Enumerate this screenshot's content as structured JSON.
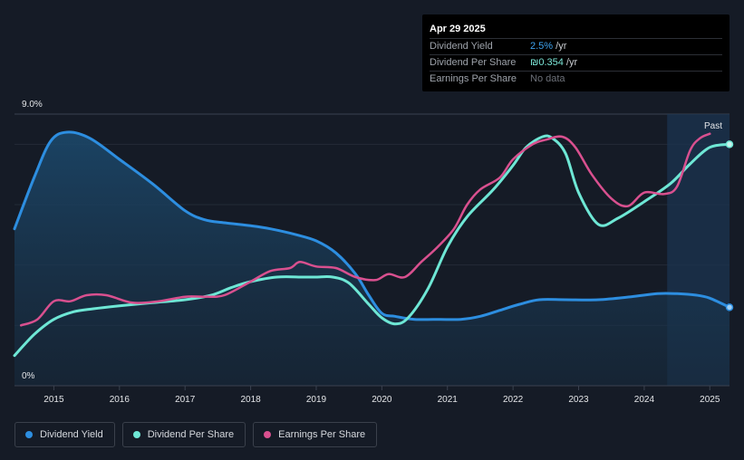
{
  "tooltip": {
    "date": "Apr 29 2025",
    "rows": [
      {
        "label": "Dividend Yield",
        "value": "2.5%",
        "unit": " /yr"
      },
      {
        "label": "Dividend Per Share",
        "value": "₪0.354",
        "unit": " /yr"
      },
      {
        "label": "Earnings Per Share",
        "value": "No data",
        "unit": ""
      }
    ]
  },
  "legend": [
    {
      "label": "Dividend Yield",
      "color": "#2d8ee0"
    },
    {
      "label": "Dividend Per Share",
      "color": "#6ee7d5"
    },
    {
      "label": "Earnings Per Share",
      "color": "#d9508f"
    }
  ],
  "chart_data": {
    "type": "line",
    "ylabel_top": "9.0%",
    "ylabel_bottom": "0%",
    "ylim": [
      0,
      9.0
    ],
    "xlim": [
      2014.4,
      2025.3
    ],
    "x_ticks": [
      "2015",
      "2016",
      "2017",
      "2018",
      "2019",
      "2020",
      "2021",
      "2022",
      "2023",
      "2024",
      "2025"
    ],
    "past_label": "Past",
    "past_start": 2024.35,
    "grid": true,
    "legend_position": "bottom-left",
    "colors": {
      "dividend_yield": "#2d8ee0",
      "dividend_per_share": "#6ee7d5",
      "earnings_per_share": "#d9508f"
    },
    "series": [
      {
        "name": "Dividend Yield",
        "x": [
          2014.4,
          2014.7,
          2014.95,
          2015.2,
          2015.55,
          2016.0,
          2016.5,
          2017.0,
          2017.3,
          2017.6,
          2018.0,
          2018.3,
          2018.7,
          2019.0,
          2019.3,
          2019.6,
          2019.8,
          2020.0,
          2020.2,
          2020.5,
          2020.9,
          2021.2,
          2021.5,
          2021.8,
          2022.1,
          2022.4,
          2022.8,
          2023.3,
          2023.8,
          2024.2,
          2024.5,
          2024.8,
          2025.0,
          2025.3
        ],
        "values": [
          5.2,
          6.9,
          8.1,
          8.4,
          8.2,
          7.5,
          6.7,
          5.8,
          5.5,
          5.4,
          5.3,
          5.2,
          5.0,
          4.8,
          4.4,
          3.7,
          3.0,
          2.4,
          2.3,
          2.2,
          2.2,
          2.2,
          2.3,
          2.5,
          2.7,
          2.85,
          2.85,
          2.85,
          2.95,
          3.05,
          3.05,
          3.0,
          2.9,
          2.6
        ]
      },
      {
        "name": "Dividend Per Share",
        "x": [
          2014.4,
          2014.7,
          2015.0,
          2015.3,
          2015.6,
          2016.0,
          2016.5,
          2017.0,
          2017.4,
          2017.7,
          2018.0,
          2018.4,
          2018.8,
          2019.0,
          2019.25,
          2019.5,
          2019.8,
          2020.0,
          2020.2,
          2020.4,
          2020.7,
          2021.0,
          2021.3,
          2021.7,
          2022.0,
          2022.2,
          2022.45,
          2022.6,
          2022.8,
          2023.0,
          2023.3,
          2023.6,
          2024.0,
          2024.4,
          2024.7,
          2025.0,
          2025.3
        ],
        "values": [
          1.0,
          1.7,
          2.2,
          2.45,
          2.55,
          2.65,
          2.75,
          2.85,
          3.0,
          3.25,
          3.45,
          3.6,
          3.6,
          3.6,
          3.6,
          3.4,
          2.7,
          2.25,
          2.05,
          2.25,
          3.2,
          4.6,
          5.6,
          6.5,
          7.3,
          7.9,
          8.25,
          8.2,
          7.7,
          6.4,
          5.35,
          5.55,
          6.1,
          6.7,
          7.35,
          7.9,
          8.0
        ]
      },
      {
        "name": "Earnings Per Share",
        "x": [
          2014.5,
          2014.75,
          2015.0,
          2015.25,
          2015.5,
          2015.8,
          2016.2,
          2016.6,
          2017.0,
          2017.3,
          2017.6,
          2018.0,
          2018.3,
          2018.6,
          2018.75,
          2019.0,
          2019.3,
          2019.6,
          2019.9,
          2020.1,
          2020.35,
          2020.6,
          2020.85,
          2021.1,
          2021.3,
          2021.5,
          2021.8,
          2022.0,
          2022.3,
          2022.5,
          2022.75,
          2022.95,
          2023.2,
          2023.5,
          2023.75,
          2024.0,
          2024.3,
          2024.5,
          2024.7,
          2024.85,
          2025.0
        ],
        "values": [
          2.0,
          2.2,
          2.8,
          2.8,
          3.0,
          3.0,
          2.75,
          2.8,
          2.95,
          2.95,
          3.0,
          3.45,
          3.8,
          3.9,
          4.1,
          3.95,
          3.9,
          3.6,
          3.5,
          3.7,
          3.6,
          4.1,
          4.6,
          5.2,
          6.0,
          6.5,
          6.9,
          7.5,
          8.0,
          8.15,
          8.25,
          7.9,
          7.0,
          6.2,
          5.95,
          6.4,
          6.35,
          6.6,
          7.8,
          8.2,
          8.35
        ]
      }
    ]
  }
}
